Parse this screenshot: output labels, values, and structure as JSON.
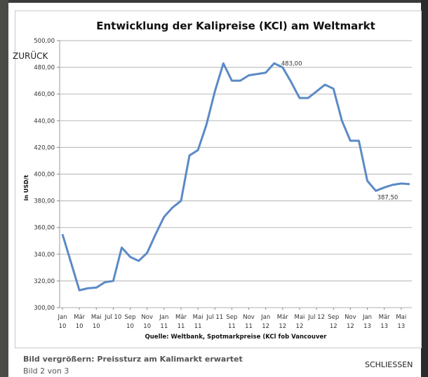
{
  "modal": {
    "back_label": "ZURÜCK",
    "close_label": "SCHLIESSEN",
    "caption": "Bild vergrößern: Preissturz am Kalimarkt erwartet",
    "counter": "Bild 2 von 3"
  },
  "colors": {
    "line": "#5b8ac6",
    "grid": "#c0c0c0"
  },
  "chart_data": {
    "type": "line",
    "title": "Entwicklung der Kalipreise (KCl) am Weltmarkt",
    "ylabel": "in USD/t",
    "xlabel": "Quelle: Weltbank, Spotmarkpreise (KCl fob Vancouver",
    "ylim": [
      300,
      500
    ],
    "yticks": [
      "300,00",
      "320,00",
      "340,00",
      "360,00",
      "380,00",
      "400,00",
      "420,00",
      "440,00",
      "460,00",
      "480,00",
      "500,00"
    ],
    "grid": true,
    "xtick_labels": [
      [
        "Jan",
        "10"
      ],
      [
        "Mär",
        "10"
      ],
      [
        "Mai",
        "10"
      ],
      [
        "Jul 10",
        ""
      ],
      [
        "Sep",
        "10"
      ],
      [
        "Nov",
        "10"
      ],
      [
        "Jan",
        "11"
      ],
      [
        "Mär",
        "11"
      ],
      [
        "Mai",
        "11"
      ],
      [
        "Jul 11",
        ""
      ],
      [
        "Sep",
        "11"
      ],
      [
        "Nov",
        "11"
      ],
      [
        "Jan",
        "12"
      ],
      [
        "Mär",
        "12"
      ],
      [
        "Mai",
        "12"
      ],
      [
        "Jul 12",
        ""
      ],
      [
        "Sep",
        "12"
      ],
      [
        "Nov",
        "12"
      ],
      [
        "Jan",
        "13"
      ],
      [
        "Mär",
        "13"
      ],
      [
        "Mai",
        "13"
      ]
    ],
    "months": [
      "Jan 10",
      "Feb 10",
      "Mär 10",
      "Apr 10",
      "Mai 10",
      "Jun 10",
      "Jul 10",
      "Aug 10",
      "Sep 10",
      "Okt 10",
      "Nov 10",
      "Dez 10",
      "Jan 11",
      "Feb 11",
      "Mär 11",
      "Apr 11",
      "Mai 11",
      "Jun 11",
      "Jul 11",
      "Aug 11",
      "Sep 11",
      "Okt 11",
      "Nov 11",
      "Dez 11",
      "Jan 12",
      "Feb 12",
      "Mär 12",
      "Apr 12",
      "Mai 12",
      "Jun 12",
      "Jul 12",
      "Aug 12",
      "Sep 12",
      "Okt 12",
      "Nov 12",
      "Dez 12",
      "Jan 13",
      "Feb 13",
      "Mär 13",
      "Apr 13",
      "Mai 13",
      "Jun 13"
    ],
    "values": [
      355,
      334,
      313,
      314.5,
      315,
      319,
      320,
      345,
      338,
      335,
      341,
      355,
      368,
      375,
      380,
      414,
      418,
      437,
      462,
      483,
      470,
      470,
      474,
      475,
      476,
      483,
      480,
      469,
      457,
      457,
      462,
      467,
      464,
      440,
      425,
      425,
      395,
      387.5,
      390,
      392,
      393,
      392.5
    ],
    "annotations": [
      {
        "month": "Feb 12",
        "label": "483,00"
      },
      {
        "month": "Feb 13",
        "label": "387,50"
      }
    ]
  }
}
